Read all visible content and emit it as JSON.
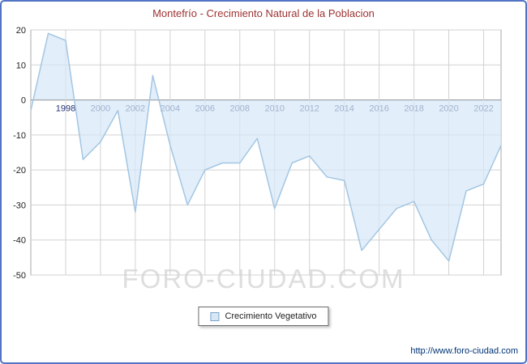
{
  "title": "Montefrío - Crecimiento Natural de la Poblacion",
  "watermark": "FORO-CIUDAD.COM",
  "legend": {
    "label": "Crecimiento Vegetativo"
  },
  "footer_url": "http://www.foro-ciudad.com",
  "colors": {
    "frame_border": "#5273c4",
    "title": "#9e3232",
    "line": "#a3c6e3",
    "fill": "rgba(214,231,246,0.7)",
    "grid": "#d2d2d2",
    "plot_border": "#aaaaaa",
    "zero_line": "#666666",
    "x_label": "#223377",
    "y_label": "#222222",
    "watermark": "#dedede",
    "footer": "#003377"
  },
  "chart_data": {
    "type": "area",
    "title": "Montefrío - Crecimiento Natural de la Poblacion",
    "xlabel": "",
    "ylabel": "",
    "x": [
      1996,
      1997,
      1998,
      1999,
      2000,
      2001,
      2002,
      2003,
      2004,
      2005,
      2006,
      2007,
      2008,
      2009,
      2010,
      2011,
      2012,
      2013,
      2014,
      2015,
      2016,
      2017,
      2018,
      2019,
      2020,
      2021,
      2022,
      2023
    ],
    "series": [
      {
        "name": "Crecimiento Vegetativo",
        "values": [
          -3,
          19,
          17,
          -17,
          -12,
          -3,
          -32,
          7,
          -13,
          -30,
          -20,
          -18,
          -18,
          -11,
          -31,
          -18,
          -16,
          -22,
          -23,
          -43,
          -37,
          -31,
          -29,
          -40,
          -46,
          -26,
          -24,
          -13
        ]
      }
    ],
    "xlim": [
      1996,
      2023
    ],
    "ylim": [
      -50,
      20
    ],
    "xticks": [
      1998,
      2000,
      2002,
      2004,
      2006,
      2008,
      2010,
      2012,
      2014,
      2016,
      2018,
      2020,
      2022
    ],
    "yticks": [
      20,
      10,
      0,
      -10,
      -20,
      -30,
      -40,
      -50
    ],
    "grid": true,
    "legend_position": "bottom"
  }
}
